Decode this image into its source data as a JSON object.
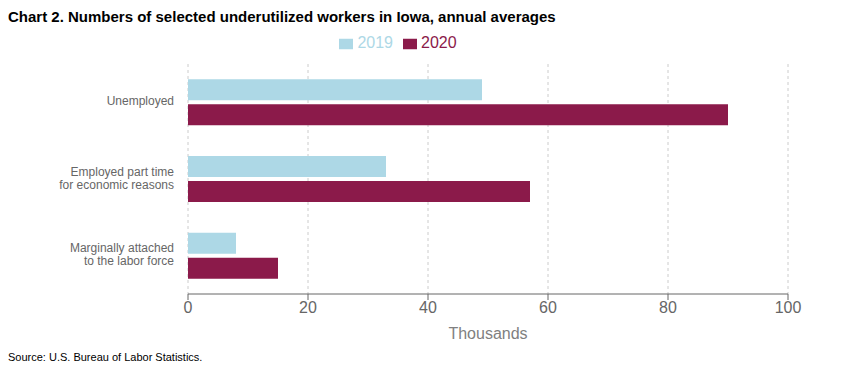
{
  "chart_data": {
    "type": "bar",
    "orientation": "horizontal",
    "title": "Chart 2. Numbers of selected underutilized workers in Iowa, annual averages",
    "categories": [
      "Unemployed",
      "Employed part time\nfor economic reasons",
      "Marginally attached\nto the labor force"
    ],
    "series": [
      {
        "name": "2019",
        "color": "#add8e6",
        "values": [
          49,
          33,
          8
        ]
      },
      {
        "name": "2020",
        "color": "#8b1a4a",
        "values": [
          90,
          57,
          15
        ]
      }
    ],
    "xlabel": "Thousands",
    "xlim": [
      0,
      100
    ],
    "xticks": [
      0,
      20,
      40,
      60,
      80,
      100
    ],
    "grid": true,
    "legend": "top",
    "annotations": [
      "Source: U.S. Bureau of Labor Statistics."
    ]
  }
}
